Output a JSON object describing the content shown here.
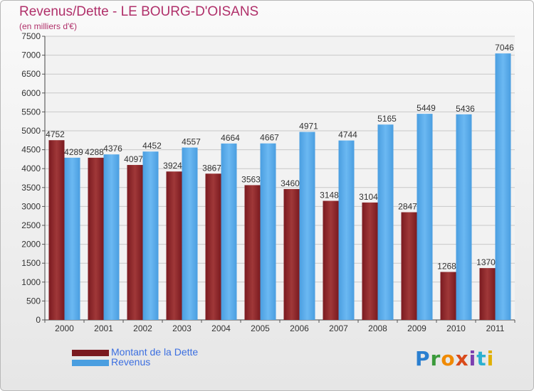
{
  "title": "Revenus/Dette - LE BOURG-D'OISANS",
  "unit_label": "(en milliers d'€)",
  "logo_text": "Proxiti",
  "logo_colors": [
    "#2a7fd0",
    "#3a9a3a",
    "#f08a00",
    "#d94a1a",
    "#7b3fb0",
    "#2ab0d0",
    "#e0b000"
  ],
  "colors": {
    "dette": "#7a1a20",
    "dette_light": "#a03838",
    "revenus": "#4a9ee0",
    "revenus_light": "#6bb8f2",
    "title": "#b0306a",
    "legend_text": "#3c6fe0"
  },
  "chart_data": {
    "type": "bar",
    "title": "Revenus/Dette - LE BOURG-D'OISANS",
    "ylabel": "(en milliers d'€)",
    "categories": [
      "2000",
      "2001",
      "2002",
      "2003",
      "2004",
      "2005",
      "2006",
      "2007",
      "2008",
      "2009",
      "2010",
      "2011"
    ],
    "series": [
      {
        "name": "Montant de la Dette",
        "values": [
          4752,
          4288,
          4097,
          3924,
          3867,
          3563,
          3460,
          3148,
          3104,
          2847,
          1268,
          1370
        ]
      },
      {
        "name": "Revenus",
        "values": [
          4289,
          4376,
          4452,
          4557,
          4664,
          4667,
          4971,
          4744,
          5165,
          5449,
          5436,
          7046
        ]
      }
    ],
    "ylim": [
      0,
      7500
    ],
    "yticks": [
      0,
      500,
      1000,
      1500,
      2000,
      2500,
      3000,
      3500,
      4000,
      4500,
      5000,
      5500,
      6000,
      6500,
      7000,
      7500
    ],
    "grid": true,
    "legend_position": "bottom-left"
  }
}
